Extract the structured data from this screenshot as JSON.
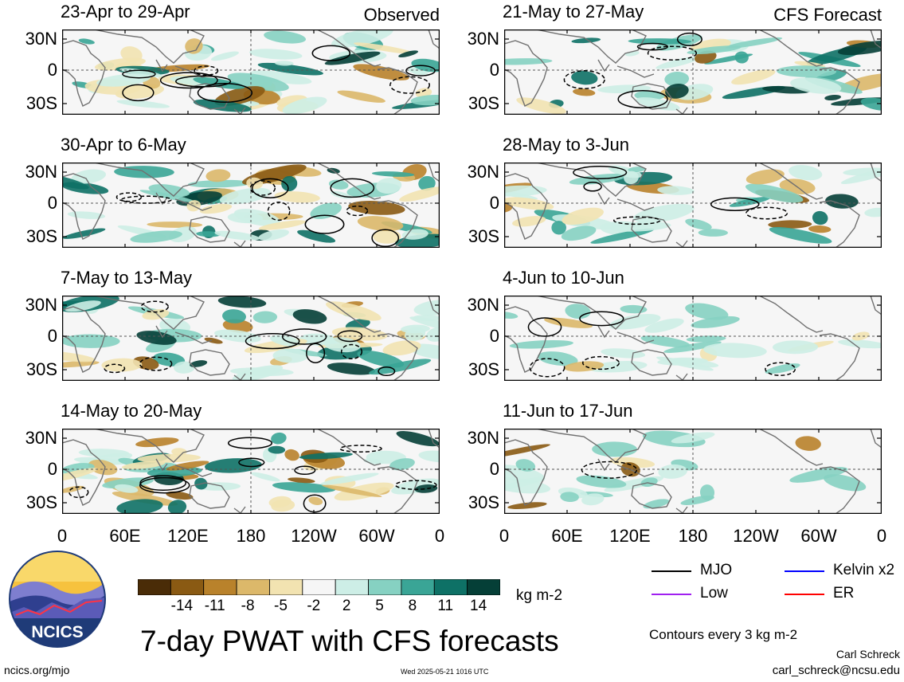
{
  "chart_data": {
    "type": "heatmap",
    "title": "7-day PWAT with CFS forecasts",
    "colorbar": {
      "units": "kg m-2",
      "ticks": [
        "-14",
        "-11",
        "-8",
        "-5",
        "-2",
        "2",
        "5",
        "8",
        "11",
        "14"
      ],
      "colors": [
        "#4a2c07",
        "#8a5a13",
        "#b9822b",
        "#dcb86a",
        "#f2e3b1",
        "#f6f6f6",
        "#cdeee6",
        "#86d1c2",
        "#3aa596",
        "#0e7166",
        "#053f37"
      ]
    },
    "x_ticks": [
      "0",
      "60E",
      "120E",
      "180",
      "120W",
      "60W",
      "0"
    ],
    "y_ticks": [
      "30N",
      "0",
      "30S"
    ],
    "panels": [
      {
        "label": "23-Apr to 29-Apr",
        "tag": "Observed"
      },
      {
        "label": "21-May to 27-May",
        "tag": "CFS Forecast"
      },
      {
        "label": "30-Apr to 6-May",
        "tag": ""
      },
      {
        "label": "28-May to 3-Jun",
        "tag": ""
      },
      {
        "label": "7-May to 13-May",
        "tag": ""
      },
      {
        "label": "4-Jun to 10-Jun",
        "tag": ""
      },
      {
        "label": "14-May to 20-May",
        "tag": ""
      },
      {
        "label": "11-Jun to 17-Jun",
        "tag": ""
      }
    ],
    "legend": [
      {
        "name": "MJO",
        "color": "#000000"
      },
      {
        "name": "Kelvin x2",
        "color": "#0000ff"
      },
      {
        "name": "Low",
        "color": "#a020f0"
      },
      {
        "name": "ER",
        "color": "#ff0000"
      }
    ],
    "contour_note": "Contours every 3 kg m-2"
  },
  "footer": {
    "logo_text": "NCICS",
    "site": "ncics.org/mjo",
    "timestamp": "Wed 2025-05-21 1016 UTC",
    "author": "Carl Schreck",
    "email": "carl_schreck@ncsu.edu"
  }
}
